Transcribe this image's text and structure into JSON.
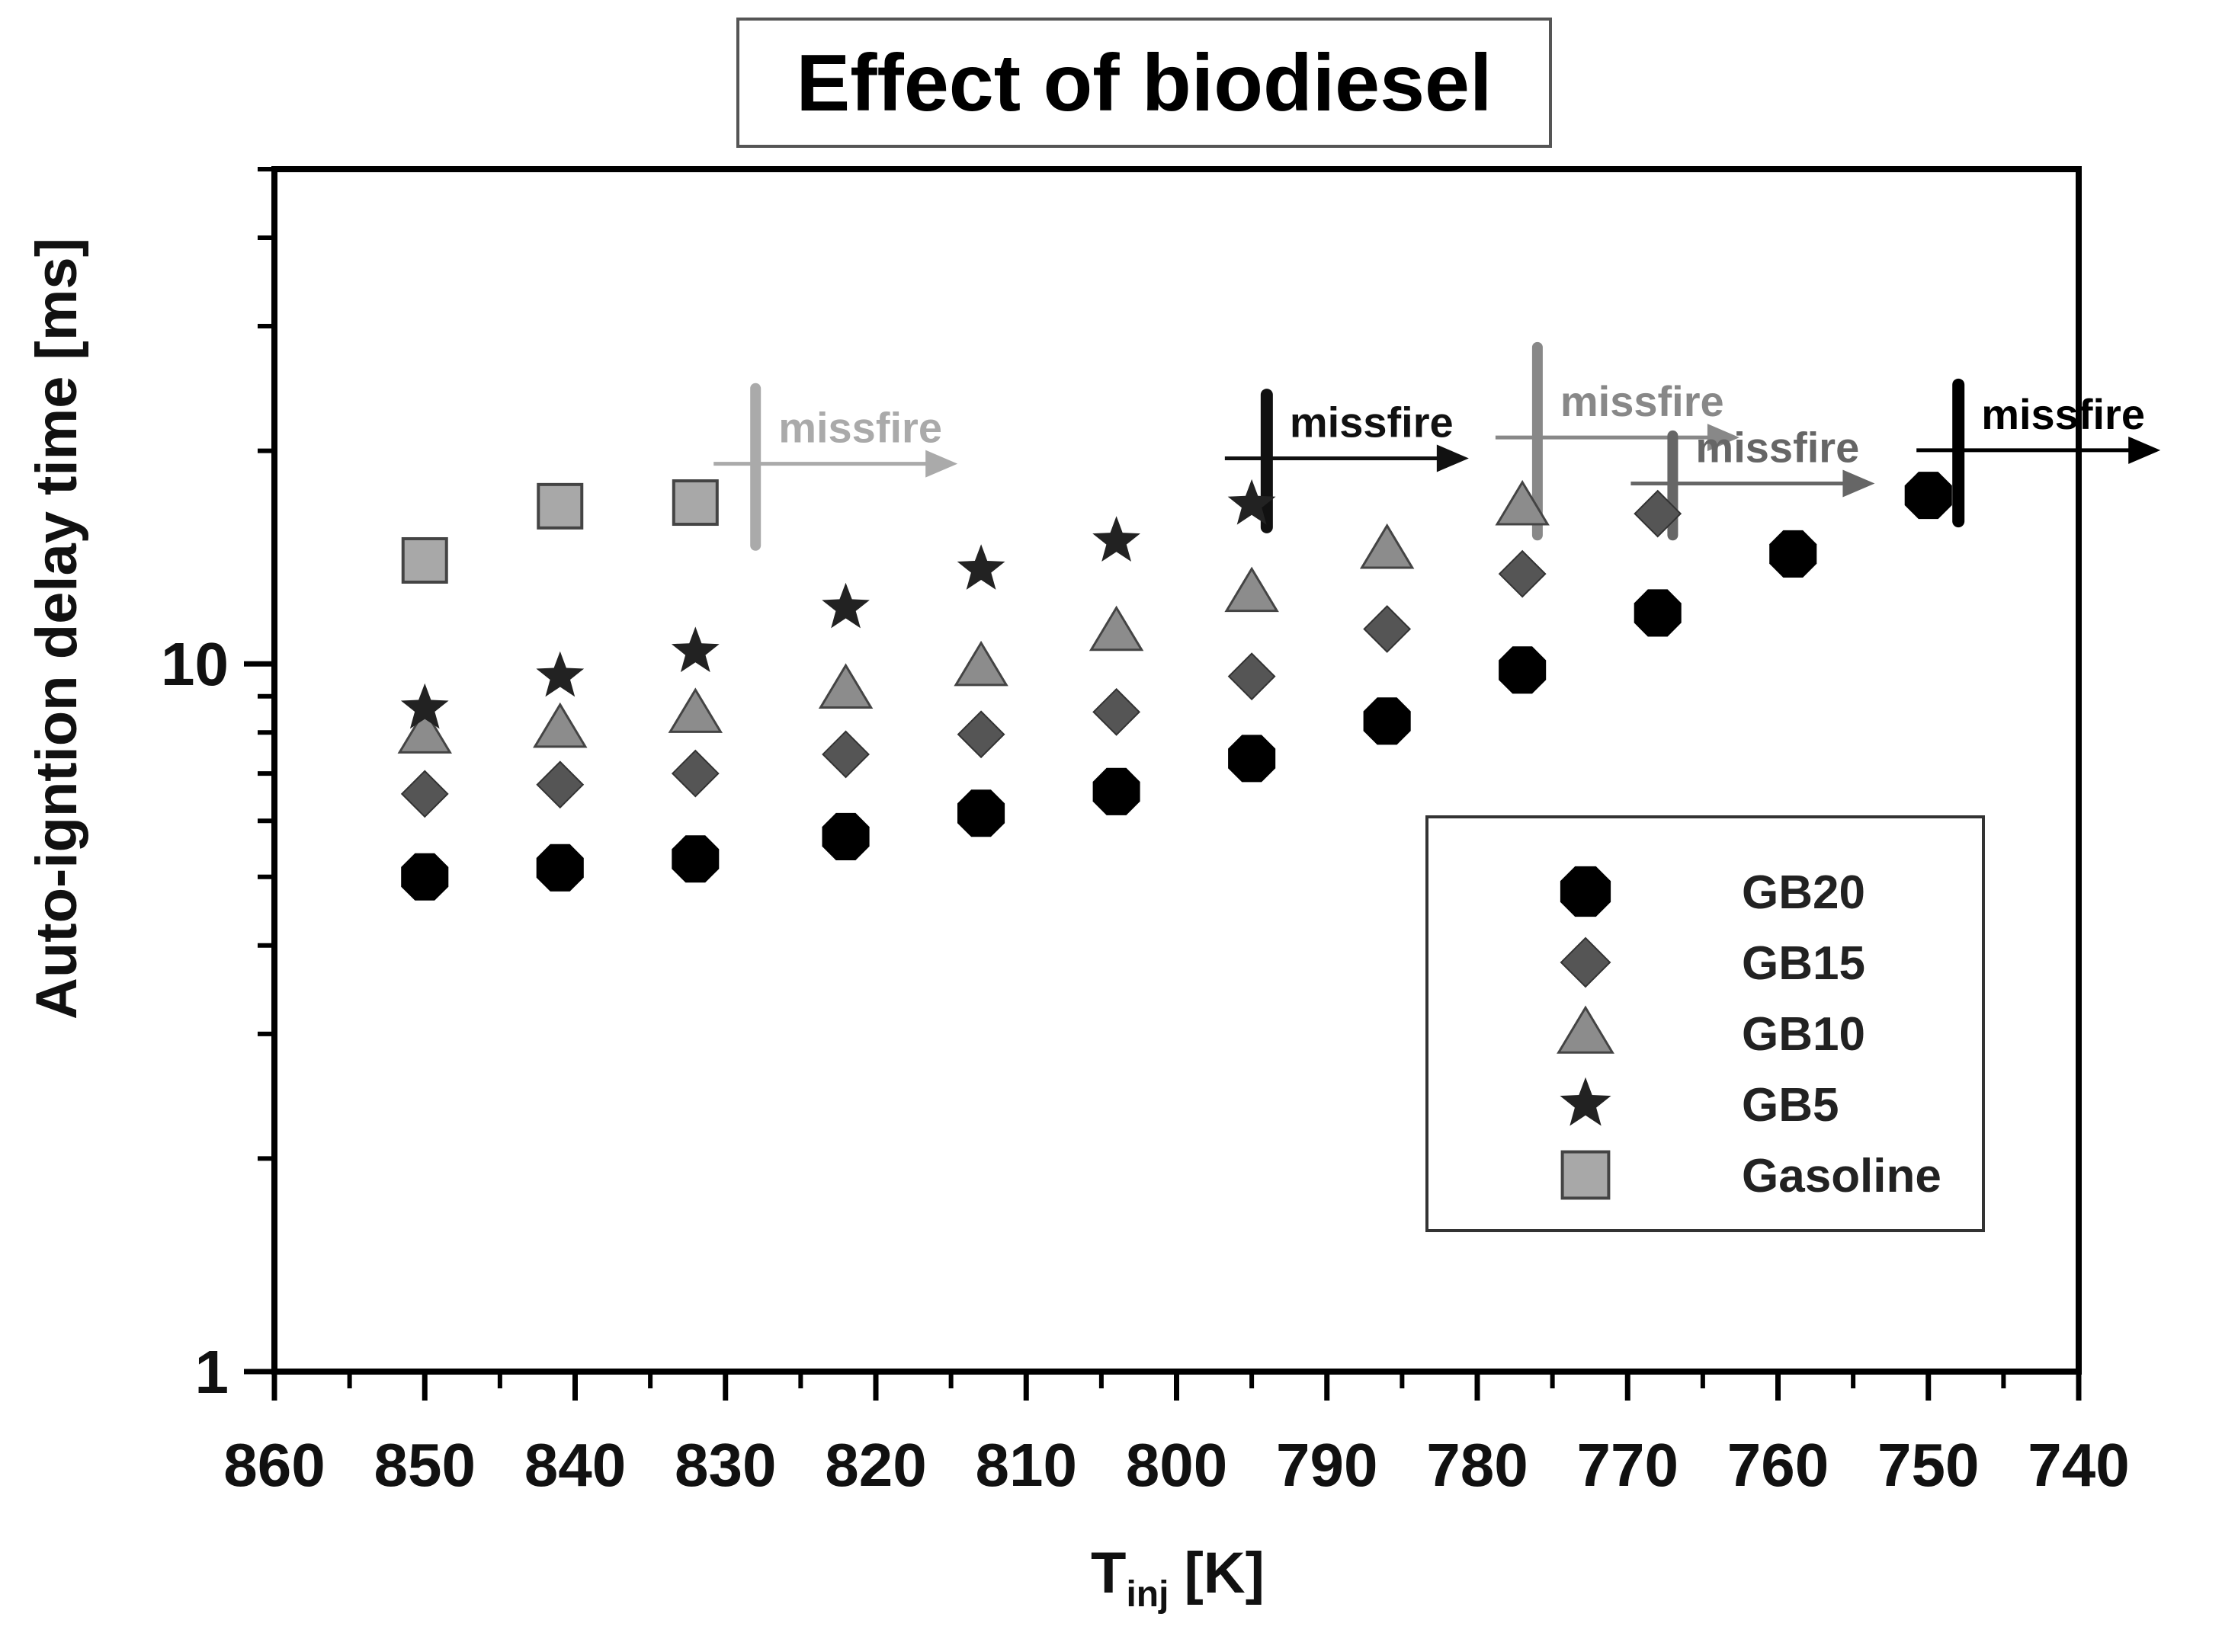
{
  "chart_data": {
    "type": "scatter",
    "title": "Effect of biodiesel",
    "xlabel": "T",
    "xlabel_subscript": "inj",
    "xlabel_unit": "[K]",
    "ylabel": "Auto-igntion delay time [ms]",
    "x_scale": "linear",
    "x_reversed": true,
    "xlim": [
      860,
      740
    ],
    "x_ticks": [
      860,
      850,
      840,
      830,
      820,
      810,
      800,
      790,
      780,
      770,
      760,
      750,
      740
    ],
    "y_scale": "log",
    "ylim": [
      1,
      50
    ],
    "y_tick_labels": [
      {
        "value": 1,
        "label": "1"
      },
      {
        "value": 10,
        "label": "10"
      }
    ],
    "legend_position": "lower-right",
    "series": [
      {
        "name": "GB20",
        "marker": "octagon",
        "color": "#000000",
        "points": [
          {
            "x": 850,
            "y": 5.0
          },
          {
            "x": 841,
            "y": 5.15
          },
          {
            "x": 832,
            "y": 5.3
          },
          {
            "x": 822,
            "y": 5.7
          },
          {
            "x": 813,
            "y": 6.15
          },
          {
            "x": 804,
            "y": 6.6
          },
          {
            "x": 795,
            "y": 7.35
          },
          {
            "x": 786,
            "y": 8.3
          },
          {
            "x": 777,
            "y": 9.8
          },
          {
            "x": 768,
            "y": 11.8
          },
          {
            "x": 759,
            "y": 14.3
          },
          {
            "x": 750,
            "y": 17.3
          }
        ]
      },
      {
        "name": "GB15",
        "marker": "diamond",
        "color": "#555555",
        "points": [
          {
            "x": 850,
            "y": 6.55
          },
          {
            "x": 841,
            "y": 6.75
          },
          {
            "x": 832,
            "y": 7.0
          },
          {
            "x": 822,
            "y": 7.45
          },
          {
            "x": 813,
            "y": 7.95
          },
          {
            "x": 804,
            "y": 8.55
          },
          {
            "x": 795,
            "y": 9.6
          },
          {
            "x": 786,
            "y": 11.2
          },
          {
            "x": 777,
            "y": 13.4
          },
          {
            "x": 768,
            "y": 16.3
          }
        ]
      },
      {
        "name": "GB10",
        "marker": "triangle",
        "color": "#8c8c8c",
        "points": [
          {
            "x": 850,
            "y": 7.95
          },
          {
            "x": 841,
            "y": 8.1
          },
          {
            "x": 832,
            "y": 8.5
          },
          {
            "x": 822,
            "y": 9.2
          },
          {
            "x": 813,
            "y": 9.9
          },
          {
            "x": 804,
            "y": 11.1
          },
          {
            "x": 795,
            "y": 12.6
          },
          {
            "x": 786,
            "y": 14.5
          },
          {
            "x": 777,
            "y": 16.7
          }
        ]
      },
      {
        "name": "GB5",
        "marker": "star",
        "color": "#222222",
        "points": [
          {
            "x": 850,
            "y": 8.65
          },
          {
            "x": 841,
            "y": 9.6
          },
          {
            "x": 832,
            "y": 10.4
          },
          {
            "x": 822,
            "y": 12.0
          },
          {
            "x": 813,
            "y": 13.6
          },
          {
            "x": 804,
            "y": 14.9
          },
          {
            "x": 795,
            "y": 16.8
          }
        ]
      },
      {
        "name": "Gasoline",
        "marker": "square",
        "color": "#a8a8a8",
        "points": [
          {
            "x": 850,
            "y": 14.0
          },
          {
            "x": 841,
            "y": 16.7
          },
          {
            "x": 832,
            "y": 16.9
          }
        ]
      }
    ],
    "annotations": [
      {
        "text": "missfire",
        "series": "Gasoline",
        "color": "#aaaaaa",
        "x": 828,
        "y_low": 14.7,
        "y_high": 24.5
      },
      {
        "text": "missfire",
        "series": "GB5",
        "color": "#111111",
        "x": 794,
        "y_low": 15.6,
        "y_high": 24.0
      },
      {
        "text": "missfire",
        "series": "GB10",
        "color": "#888888",
        "x": 776,
        "y_low": 15.2,
        "y_high": 28.0
      },
      {
        "text": "missfire",
        "series": "GB15",
        "color": "#666666",
        "x": 767,
        "y_low": 15.2,
        "y_high": 21.0
      },
      {
        "text": "missfire",
        "series": "GB20",
        "color": "#000000",
        "x": 748,
        "y_low": 15.9,
        "y_high": 24.8
      }
    ]
  }
}
